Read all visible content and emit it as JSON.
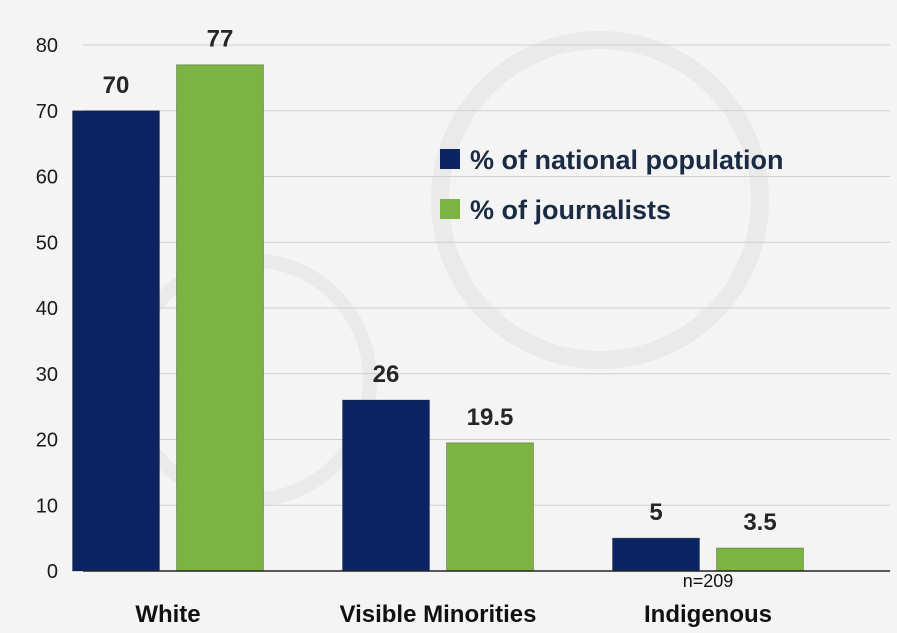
{
  "chart_data": {
    "type": "bar",
    "categories": [
      "White",
      "Visible Minorities",
      "Indigenous"
    ],
    "series": [
      {
        "name": "% of national population",
        "color": "#0c2461",
        "values": [
          70,
          26,
          5
        ],
        "labels": [
          "70",
          "26",
          "5"
        ]
      },
      {
        "name": "% of journalists",
        "color": "#7cb342",
        "values": [
          77,
          19.5,
          3.5
        ],
        "labels": [
          "77",
          "19.5",
          "3.5"
        ]
      }
    ],
    "ylim": [
      0,
      80
    ],
    "yticks": [
      "0",
      "10",
      "20",
      "30",
      "40",
      "50",
      "60",
      "70",
      "80"
    ],
    "grid": true,
    "legend_position": "right",
    "note": "n=209",
    "gridline_color": "#d0d0d0",
    "axis_color": "#222222"
  }
}
